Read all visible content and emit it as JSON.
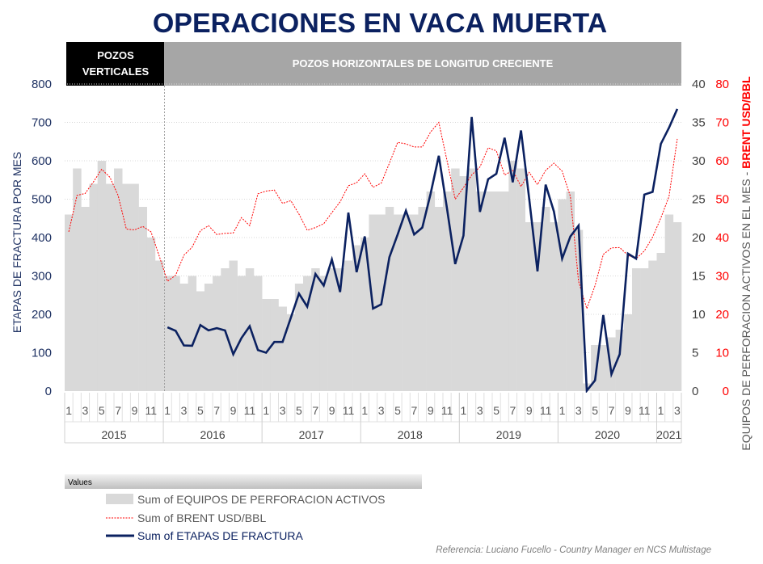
{
  "chart_data": {
    "type": "bar+line",
    "title": "OPERACIONES EN VACA MUERTA",
    "bands": [
      {
        "label_lines": [
          "POZOS",
          "VERTICALES"
        ],
        "color": "#000000"
      },
      {
        "label_lines": [
          "POZOS HORIZONTALES DE LONGITUD CRECIENTE"
        ],
        "color": "#a6a6a6"
      }
    ],
    "ylabel_left": "ETAPAS DE FRACTURA POR MES",
    "ylabel_right_part1": "EQUIPOS DE PERFORACION ACTIVOS EN EL MES - ",
    "ylabel_right_part2": "BRENT USD/BBL",
    "ylim_left": [
      0,
      800
    ],
    "ylim_rigs": [
      0,
      40
    ],
    "ylim_brent": [
      0,
      80
    ],
    "yticks_left": [
      "0",
      "100",
      "200",
      "300",
      "400",
      "500",
      "600",
      "700",
      "800"
    ],
    "yticks_rigs": [
      "0",
      "5",
      "10",
      "15",
      "20",
      "25",
      "30",
      "35",
      "40"
    ],
    "yticks_brent": [
      "0",
      "10",
      "20",
      "30",
      "40",
      "50",
      "60",
      "70",
      "80"
    ],
    "years": [
      {
        "label": "2015",
        "months": 12
      },
      {
        "label": "2016",
        "months": 12
      },
      {
        "label": "2017",
        "months": 12
      },
      {
        "label": "2018",
        "months": 12
      },
      {
        "label": "2019",
        "months": 12
      },
      {
        "label": "2020",
        "months": 12
      },
      {
        "label": "2021",
        "months": 3
      }
    ],
    "month_tick_labels": [
      "1",
      "3",
      "5",
      "7",
      "9",
      "11"
    ],
    "grid": true,
    "legend_position": "bottom-left",
    "legend_header": "Values",
    "series": [
      {
        "name": "Sum of EQUIPOS DE PERFORACION ACTIVOS",
        "type": "bar",
        "axis": "rigs",
        "color": "#d9d9d9",
        "values": [
          23,
          29,
          24,
          27,
          30,
          27,
          29,
          27,
          27,
          24,
          20,
          17,
          15,
          15,
          14,
          15,
          13,
          14,
          15,
          16,
          17,
          15,
          16,
          15,
          12,
          12,
          11,
          10,
          14,
          15,
          16,
          15,
          16,
          16,
          17,
          19,
          20,
          23,
          23,
          24,
          23,
          23,
          23,
          24,
          26,
          24,
          26,
          29,
          28,
          29,
          26,
          26,
          26,
          26,
          30,
          29,
          22,
          22,
          24,
          22,
          25,
          26,
          21,
          1,
          6,
          6,
          7,
          8,
          10,
          16,
          16,
          17,
          18,
          23,
          22
        ]
      },
      {
        "name": "Sum of BRENT USD/BBL",
        "type": "line",
        "axis": "brent",
        "color": "#ff0000",
        "style": "dotted",
        "values": [
          41.5,
          51,
          51.5,
          54.5,
          57.8,
          55.7,
          51,
          42.2,
          42,
          42.9,
          41.5,
          35.2,
          28.6,
          30.2,
          35.4,
          37.5,
          41.8,
          43.1,
          40.8,
          41.1,
          41.2,
          45.2,
          43.1,
          51.4,
          52.1,
          52.4,
          48.9,
          49.6,
          46.1,
          41.9,
          42.6,
          43.6,
          46.5,
          49.3,
          53.5,
          54.3,
          56.6,
          53.1,
          54.2,
          59.4,
          64.8,
          64.4,
          63.6,
          63.6,
          67.5,
          70,
          60,
          50,
          53,
          56.3,
          58.4,
          63.4,
          62.6,
          56.3,
          57.5,
          53.3,
          57,
          53.8,
          57.5,
          59.4,
          57.3,
          50.7,
          28.6,
          21.5,
          27.5,
          35.6,
          37.3,
          37.4,
          35.4,
          34.5,
          36.5,
          40.1,
          45.1,
          50.7,
          65.7
        ]
      },
      {
        "name": "Sum of ETAPAS DE FRACTURA",
        "type": "line",
        "axis": "left",
        "color": "#0b2160",
        "style": "solid",
        "values": [
          null,
          null,
          null,
          null,
          null,
          null,
          null,
          null,
          null,
          null,
          null,
          null,
          166,
          157,
          119,
          118,
          172,
          158,
          164,
          158,
          96,
          138,
          169,
          107,
          100,
          128,
          128,
          191,
          254,
          220,
          305,
          275,
          343,
          258,
          465,
          310,
          403,
          215,
          226,
          349,
          408,
          470,
          408,
          426,
          514,
          613,
          475,
          331,
          405,
          714,
          467,
          552,
          566,
          660,
          544,
          679,
          500,
          312,
          538,
          468,
          345,
          403,
          431,
          1,
          28,
          198,
          44,
          96,
          358,
          345,
          512,
          519,
          644,
          686,
          735
        ]
      }
    ],
    "reference": "Referencia: Luciano Fucello - Country Manager en NCS Multistage"
  }
}
